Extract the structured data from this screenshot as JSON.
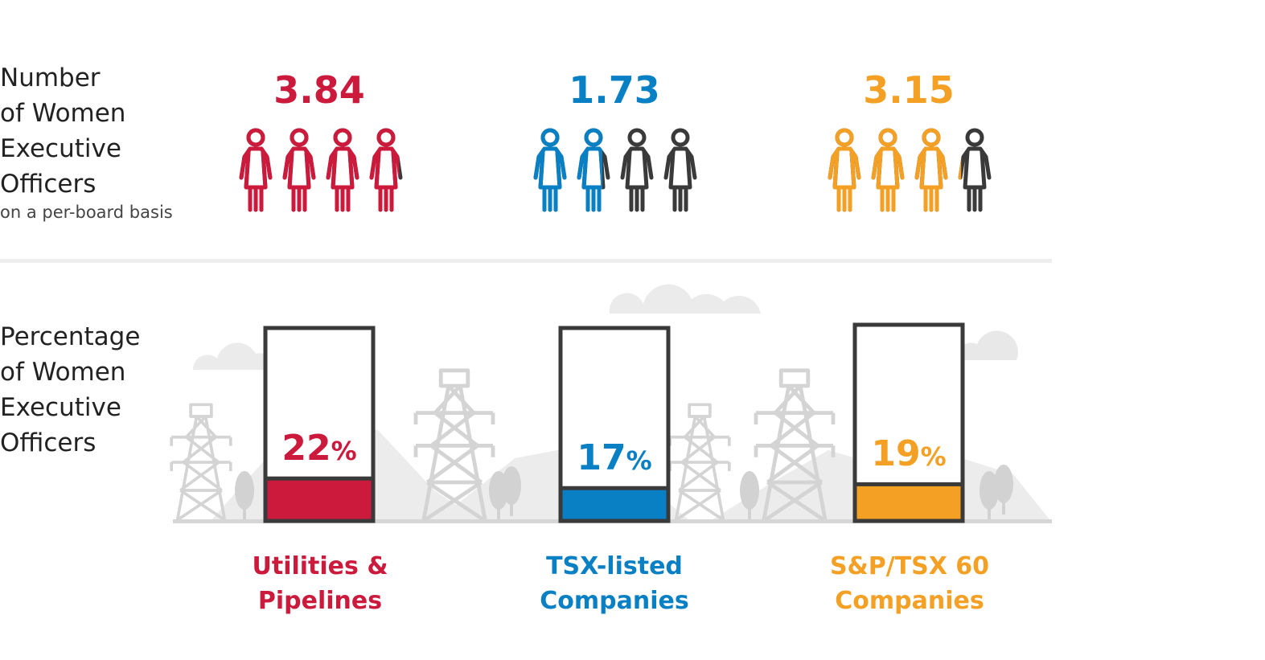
{
  "labels": {
    "top": {
      "line1": "Number",
      "line2": "of Women",
      "line3": "Executive",
      "line4": "Officers",
      "sub": "on a per-board basis"
    },
    "bottom": {
      "line1": "Percentage",
      "line2": "of Women",
      "line3": "Executive",
      "line4": "Officers"
    }
  },
  "chart_data": [
    {
      "type": "pictogram",
      "title": "Number of Women Executive Officers on a per-board basis",
      "icon": "woman-icon",
      "icon_max": 4,
      "categories": [
        "Utilities & Pipelines",
        "TSX-listed Companies",
        "S&P/TSX 60 Companies"
      ],
      "values": [
        3.84,
        1.73,
        3.15
      ],
      "value_labels": [
        "3.84",
        "1.73",
        "3.15"
      ],
      "colors": [
        "#cc1a3d",
        "#0a80c4",
        "#f4a024"
      ],
      "empty_color": "#3a3a3a"
    },
    {
      "type": "bar",
      "title": "Percentage of Women Executive Officers",
      "categories": [
        "Utilities & Pipelines",
        "TSX-listed Companies",
        "S&P/TSX 60 Companies"
      ],
      "values": [
        22,
        17,
        19
      ],
      "value_labels": [
        "22",
        "17",
        "19"
      ],
      "unit": "%",
      "ylim": [
        0,
        100
      ],
      "colors": [
        "#cc1a3d",
        "#0a80c4",
        "#f4a024"
      ],
      "category_lines": [
        [
          "Utilities &",
          "Pipelines"
        ],
        [
          "TSX-listed",
          "Companies"
        ],
        [
          "S&P/TSX 60",
          "Companies"
        ]
      ]
    }
  ]
}
